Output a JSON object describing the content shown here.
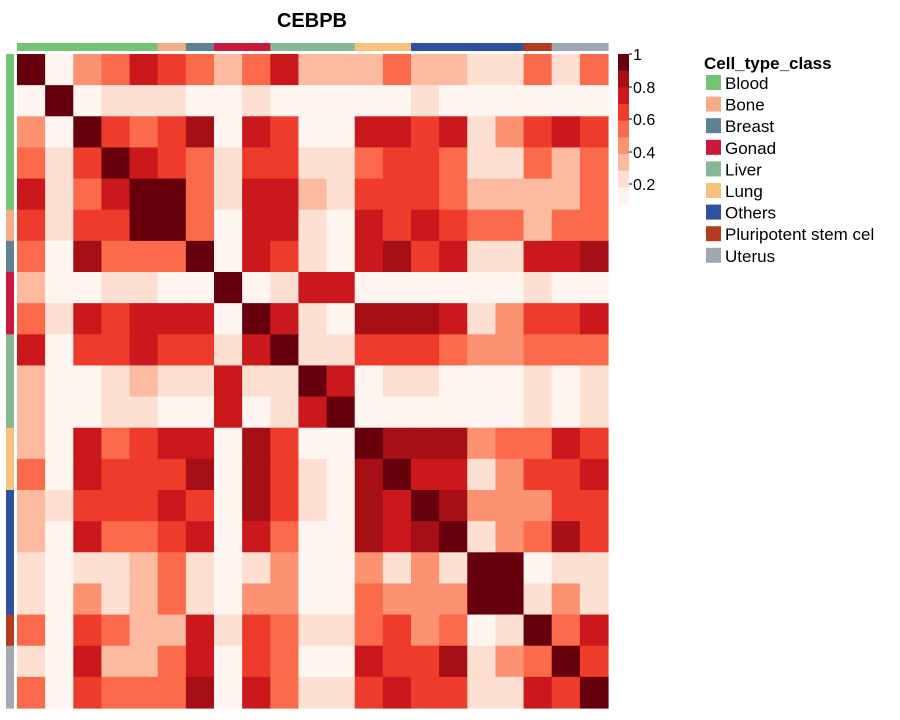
{
  "chart_data": {
    "type": "heatmap",
    "title": "CEBPB",
    "n": 21,
    "groups": [
      "Blood",
      "Blood",
      "Blood",
      "Blood",
      "Blood",
      "Bone",
      "Breast",
      "Gonad",
      "Gonad",
      "Liver",
      "Liver",
      "Liver",
      "Lung",
      "Lung",
      "Others",
      "Others",
      "Others",
      "Others",
      "Pluripotent stem cel",
      "Uterus",
      "Uterus"
    ],
    "values": [
      [
        1.0,
        0.05,
        0.3,
        0.4,
        0.6,
        0.5,
        0.4,
        0.25,
        0.4,
        0.6,
        0.25,
        0.25,
        0.25,
        0.4,
        0.25,
        0.25,
        0.15,
        0.15,
        0.4,
        0.15,
        0.4
      ],
      [
        0.05,
        1.0,
        0.05,
        0.15,
        0.15,
        0.15,
        0.05,
        0.05,
        0.15,
        0.05,
        0.05,
        0.05,
        0.05,
        0.05,
        0.15,
        0.05,
        0.05,
        0.05,
        0.05,
        0.05,
        0.05
      ],
      [
        0.3,
        0.05,
        1.0,
        0.5,
        0.4,
        0.5,
        0.7,
        0.05,
        0.6,
        0.5,
        0.05,
        0.05,
        0.6,
        0.6,
        0.5,
        0.6,
        0.15,
        0.3,
        0.5,
        0.6,
        0.5
      ],
      [
        0.4,
        0.15,
        0.5,
        1.0,
        0.6,
        0.5,
        0.4,
        0.15,
        0.5,
        0.5,
        0.15,
        0.15,
        0.4,
        0.5,
        0.5,
        0.4,
        0.15,
        0.15,
        0.4,
        0.25,
        0.4
      ],
      [
        0.6,
        0.15,
        0.4,
        0.6,
        1.0,
        0.8,
        0.4,
        0.15,
        0.6,
        0.6,
        0.25,
        0.15,
        0.5,
        0.5,
        0.5,
        0.4,
        0.25,
        0.25,
        0.25,
        0.25,
        0.4
      ],
      [
        0.5,
        0.15,
        0.5,
        0.5,
        0.8,
        1.0,
        0.4,
        0.05,
        0.6,
        0.6,
        0.15,
        0.05,
        0.6,
        0.5,
        0.6,
        0.5,
        0.4,
        0.4,
        0.25,
        0.4,
        0.4
      ],
      [
        0.4,
        0.05,
        0.7,
        0.4,
        0.4,
        0.4,
        1.0,
        0.05,
        0.6,
        0.5,
        0.15,
        0.05,
        0.6,
        0.7,
        0.5,
        0.6,
        0.15,
        0.15,
        0.6,
        0.6,
        0.7
      ],
      [
        0.25,
        0.05,
        0.05,
        0.15,
        0.15,
        0.05,
        0.05,
        1.0,
        0.05,
        0.15,
        0.6,
        0.6,
        0.05,
        0.05,
        0.05,
        0.05,
        0.05,
        0.05,
        0.15,
        0.05,
        0.05
      ],
      [
        0.4,
        0.15,
        0.6,
        0.5,
        0.6,
        0.6,
        0.6,
        0.05,
        1.0,
        0.6,
        0.15,
        0.05,
        0.7,
        0.7,
        0.7,
        0.6,
        0.15,
        0.3,
        0.5,
        0.5,
        0.6
      ],
      [
        0.6,
        0.05,
        0.5,
        0.5,
        0.6,
        0.5,
        0.5,
        0.15,
        0.6,
        1.0,
        0.15,
        0.15,
        0.5,
        0.5,
        0.5,
        0.4,
        0.3,
        0.3,
        0.4,
        0.4,
        0.4
      ],
      [
        0.25,
        0.05,
        0.05,
        0.15,
        0.25,
        0.15,
        0.15,
        0.6,
        0.15,
        0.15,
        1.0,
        0.6,
        0.05,
        0.15,
        0.15,
        0.05,
        0.05,
        0.05,
        0.15,
        0.05,
        0.15
      ],
      [
        0.25,
        0.05,
        0.05,
        0.15,
        0.15,
        0.05,
        0.05,
        0.6,
        0.05,
        0.15,
        0.6,
        1.0,
        0.05,
        0.05,
        0.05,
        0.05,
        0.05,
        0.05,
        0.15,
        0.05,
        0.15
      ],
      [
        0.25,
        0.05,
        0.6,
        0.4,
        0.5,
        0.6,
        0.6,
        0.05,
        0.7,
        0.5,
        0.05,
        0.05,
        1.0,
        0.7,
        0.7,
        0.7,
        0.3,
        0.4,
        0.4,
        0.6,
        0.5
      ],
      [
        0.4,
        0.05,
        0.6,
        0.5,
        0.5,
        0.5,
        0.7,
        0.05,
        0.7,
        0.5,
        0.15,
        0.05,
        0.7,
        1.0,
        0.6,
        0.6,
        0.15,
        0.3,
        0.5,
        0.5,
        0.6
      ],
      [
        0.25,
        0.15,
        0.5,
        0.5,
        0.5,
        0.6,
        0.5,
        0.05,
        0.7,
        0.5,
        0.15,
        0.05,
        0.7,
        0.6,
        1.0,
        0.7,
        0.3,
        0.3,
        0.3,
        0.5,
        0.5
      ],
      [
        0.25,
        0.05,
        0.6,
        0.4,
        0.4,
        0.5,
        0.6,
        0.05,
        0.6,
        0.4,
        0.05,
        0.05,
        0.7,
        0.6,
        0.7,
        1.0,
        0.15,
        0.3,
        0.4,
        0.7,
        0.5
      ],
      [
        0.15,
        0.05,
        0.15,
        0.15,
        0.25,
        0.4,
        0.15,
        0.05,
        0.15,
        0.3,
        0.05,
        0.05,
        0.3,
        0.15,
        0.3,
        0.15,
        1.0,
        0.8,
        0.05,
        0.15,
        0.15
      ],
      [
        0.15,
        0.05,
        0.3,
        0.15,
        0.25,
        0.4,
        0.15,
        0.05,
        0.3,
        0.3,
        0.05,
        0.05,
        0.4,
        0.3,
        0.3,
        0.3,
        0.8,
        1.0,
        0.15,
        0.3,
        0.15
      ],
      [
        0.4,
        0.05,
        0.5,
        0.4,
        0.25,
        0.25,
        0.6,
        0.15,
        0.5,
        0.4,
        0.15,
        0.15,
        0.4,
        0.5,
        0.3,
        0.4,
        0.05,
        0.15,
        1.0,
        0.4,
        0.6
      ],
      [
        0.15,
        0.05,
        0.6,
        0.25,
        0.25,
        0.4,
        0.6,
        0.05,
        0.5,
        0.4,
        0.05,
        0.05,
        0.6,
        0.5,
        0.5,
        0.7,
        0.15,
        0.3,
        0.4,
        1.0,
        0.5
      ],
      [
        0.4,
        0.05,
        0.5,
        0.4,
        0.4,
        0.4,
        0.7,
        0.05,
        0.6,
        0.4,
        0.15,
        0.15,
        0.5,
        0.6,
        0.5,
        0.5,
        0.15,
        0.15,
        0.6,
        0.5,
        1.0
      ]
    ],
    "color_scale": {
      "ticks": [
        "1",
        "0.8",
        "0.6",
        "0.4",
        "0.2"
      ],
      "breaks": [
        0.0,
        0.1,
        0.2,
        0.3,
        0.4,
        0.5,
        0.6,
        0.7,
        0.8,
        0.9,
        1.0
      ],
      "colors": [
        "#fff5f0",
        "#fee0d2",
        "#fcbba1",
        "#fc9272",
        "#fb6a4a",
        "#ef3b2c",
        "#cb181d",
        "#a50f15",
        "#67000d",
        "#67000d"
      ]
    },
    "legend": {
      "title": "Cell_type_class",
      "placement": "right",
      "items": [
        {
          "label": "Blood",
          "color": "#74c476"
        },
        {
          "label": "Bone",
          "color": "#f4ad87"
        },
        {
          "label": "Breast",
          "color": "#5f8196"
        },
        {
          "label": "Gonad",
          "color": "#c8193c"
        },
        {
          "label": "Liver",
          "color": "#86b893"
        },
        {
          "label": "Lung",
          "color": "#f8c17d"
        },
        {
          "label": "Others",
          "color": "#3050a0"
        },
        {
          "label": "Pluripotent stem cel",
          "color": "#b43c1e"
        },
        {
          "label": "Uterus",
          "color": "#a0a8b4"
        }
      ]
    }
  }
}
